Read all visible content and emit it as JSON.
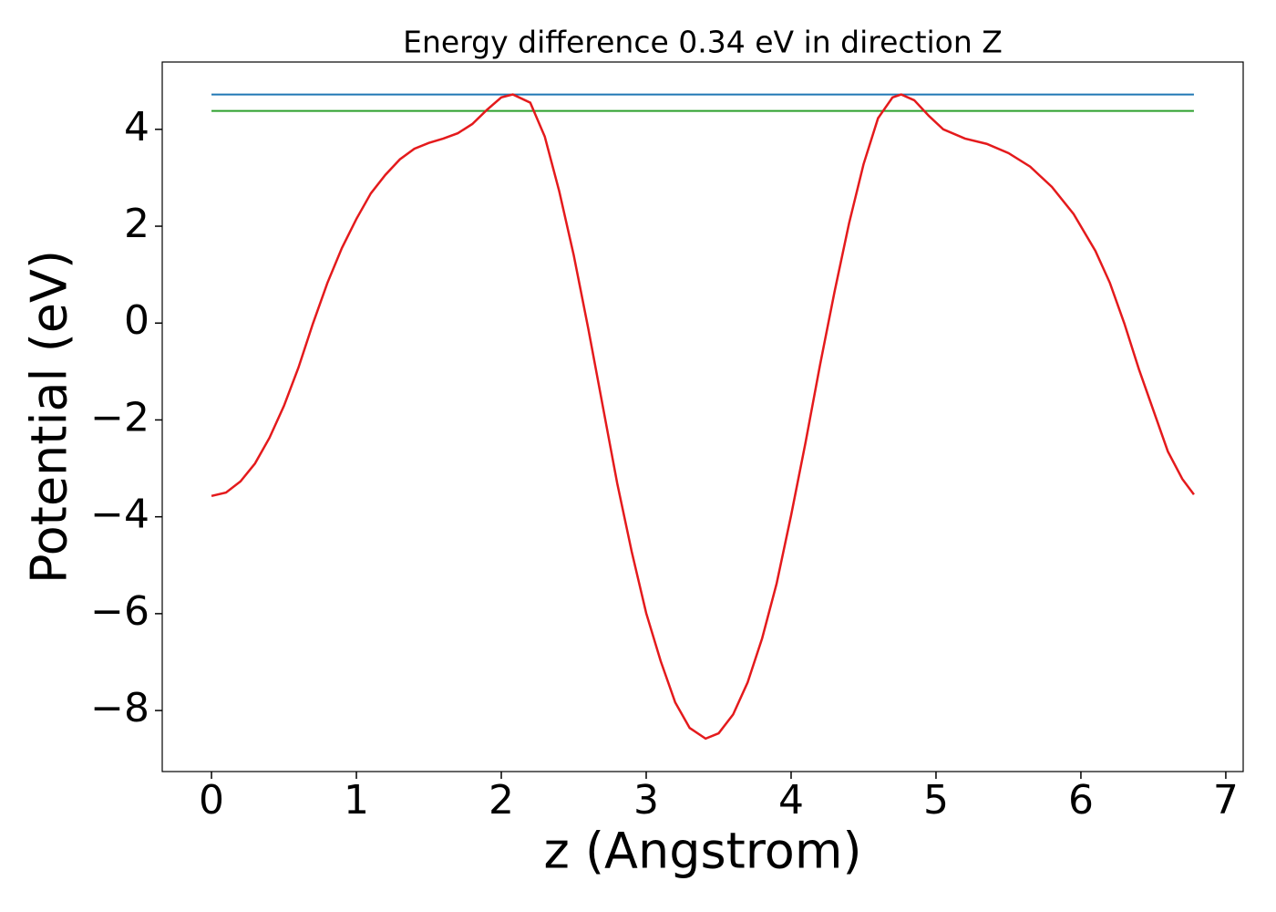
{
  "chart_data": {
    "type": "line",
    "title": "Energy difference 0.34 eV in direction Z",
    "xlabel": "z (Angstrom)",
    "ylabel": "Potential (eV)",
    "xlim": [
      -0.34,
      7.12
    ],
    "ylim": [
      -9.26,
      5.39
    ],
    "xticks": [
      0,
      1,
      2,
      3,
      4,
      5,
      6,
      7
    ],
    "yticks": [
      {
        "value": -8,
        "label": "−8"
      },
      {
        "value": -6,
        "label": "−6"
      },
      {
        "value": -4,
        "label": "−4"
      },
      {
        "value": -2,
        "label": "−2"
      },
      0,
      2,
      4
    ],
    "grid": false,
    "series": [
      {
        "color": "#1f77b4",
        "x": [
          0,
          6.78
        ],
        "values": [
          4.72,
          4.72
        ]
      },
      {
        "color": "#2ca02c",
        "x": [
          0,
          6.78
        ],
        "values": [
          4.38,
          4.38
        ]
      },
      {
        "color": "#e41a1c",
        "x": [
          0,
          0.1,
          0.2,
          0.3,
          0.4,
          0.5,
          0.6,
          0.7,
          0.8,
          0.9,
          1.0,
          1.1,
          1.2,
          1.3,
          1.4,
          1.5,
          1.6,
          1.7,
          1.8,
          1.9,
          2.0,
          2.08,
          2.2,
          2.3,
          2.4,
          2.5,
          2.6,
          2.7,
          2.8,
          2.9,
          3.0,
          3.1,
          3.2,
          3.3,
          3.41,
          3.5,
          3.6,
          3.7,
          3.8,
          3.9,
          4.0,
          4.1,
          4.2,
          4.3,
          4.4,
          4.5,
          4.6,
          4.7,
          4.76,
          4.85,
          4.95,
          5.05,
          5.2,
          5.35,
          5.5,
          5.65,
          5.8,
          5.95,
          6.1,
          6.2,
          6.3,
          6.4,
          6.5,
          6.6,
          6.7,
          6.78
        ],
        "values": [
          -3.57,
          -3.5,
          -3.27,
          -2.9,
          -2.37,
          -1.71,
          -0.92,
          -0.01,
          0.83,
          1.55,
          2.15,
          2.68,
          3.06,
          3.38,
          3.6,
          3.72,
          3.81,
          3.92,
          4.11,
          4.4,
          4.66,
          4.72,
          4.55,
          3.85,
          2.72,
          1.4,
          -0.11,
          -1.71,
          -3.31,
          -4.72,
          -5.99,
          -6.98,
          -7.83,
          -8.36,
          -8.58,
          -8.47,
          -8.08,
          -7.42,
          -6.51,
          -5.38,
          -3.97,
          -2.46,
          -0.86,
          0.65,
          2.06,
          3.28,
          4.23,
          4.66,
          4.72,
          4.6,
          4.28,
          4.0,
          3.81,
          3.7,
          3.51,
          3.23,
          2.81,
          2.25,
          1.49,
          0.83,
          -0.01,
          -0.95,
          -1.8,
          -2.65,
          -3.22,
          -3.54
        ]
      }
    ]
  }
}
